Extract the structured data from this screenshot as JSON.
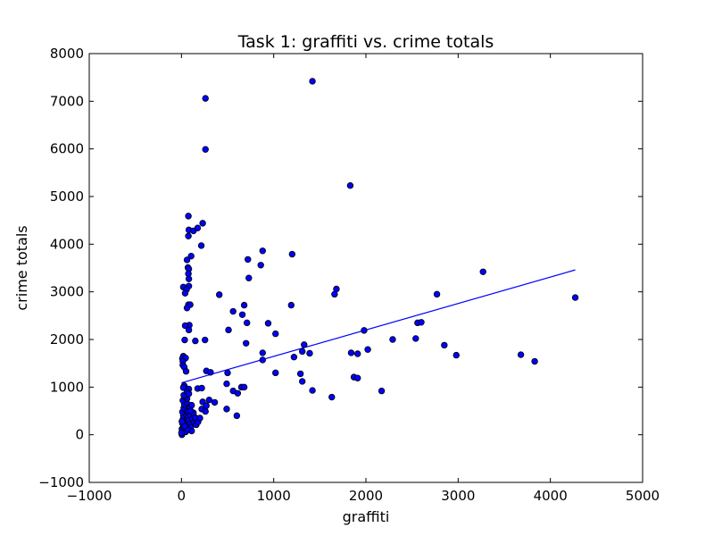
{
  "chart_data": {
    "type": "scatter",
    "title": "Task 1: graffiti vs. crime totals",
    "xlabel": "graffiti",
    "ylabel": "crime totals",
    "xlim": [
      -1000,
      5000
    ],
    "ylim": [
      -1000,
      8000
    ],
    "xticks": [
      -1000,
      0,
      1000,
      2000,
      3000,
      4000,
      5000
    ],
    "yticks": [
      -1000,
      0,
      1000,
      2000,
      3000,
      4000,
      5000,
      6000,
      7000,
      8000
    ],
    "xtick_labels": [
      "−1000",
      "0",
      "1000",
      "2000",
      "3000",
      "4000",
      "5000"
    ],
    "ytick_labels": [
      "−1000",
      "0",
      "1000",
      "2000",
      "3000",
      "4000",
      "5000",
      "6000",
      "7000",
      "8000"
    ],
    "grid": false,
    "marker_color": "#0000ff",
    "line_color": "#0000ff",
    "fit_line": {
      "x": [
        0,
        4270
      ],
      "y": [
        1090,
        3460
      ]
    },
    "points": [
      [
        260,
        7060
      ],
      [
        1420,
        7420
      ],
      [
        260,
        5990
      ],
      [
        1830,
        5230
      ],
      [
        75,
        4590
      ],
      [
        230,
        4440
      ],
      [
        80,
        4300
      ],
      [
        130,
        4280
      ],
      [
        175,
        4340
      ],
      [
        215,
        3970
      ],
      [
        75,
        4170
      ],
      [
        105,
        3750
      ],
      [
        60,
        3670
      ],
      [
        70,
        3510
      ],
      [
        80,
        3480
      ],
      [
        75,
        3380
      ],
      [
        80,
        3270
      ],
      [
        80,
        3120
      ],
      [
        20,
        3100
      ],
      [
        55,
        3050
      ],
      [
        40,
        2970
      ],
      [
        75,
        2730
      ],
      [
        95,
        2730
      ],
      [
        60,
        2660
      ],
      [
        85,
        2300
      ],
      [
        40,
        2290
      ],
      [
        80,
        2200
      ],
      [
        35,
        1990
      ],
      [
        20,
        1650
      ],
      [
        10,
        1600
      ],
      [
        45,
        1610
      ],
      [
        15,
        1540
      ],
      [
        15,
        1460
      ],
      [
        30,
        1420
      ],
      [
        50,
        1330
      ],
      [
        270,
        1340
      ],
      [
        315,
        1310
      ],
      [
        150,
        1970
      ],
      [
        255,
        1990
      ],
      [
        30,
        1030
      ],
      [
        20,
        990
      ],
      [
        175,
        970
      ],
      [
        220,
        980
      ],
      [
        80,
        960
      ],
      [
        410,
        2940
      ],
      [
        560,
        2590
      ],
      [
        660,
        2520
      ],
      [
        680,
        2720
      ],
      [
        720,
        3680
      ],
      [
        730,
        3290
      ],
      [
        710,
        2350
      ],
      [
        510,
        2200
      ],
      [
        700,
        1920
      ],
      [
        880,
        3860
      ],
      [
        860,
        3560
      ],
      [
        1200,
        3790
      ],
      [
        1190,
        2720
      ],
      [
        940,
        2340
      ],
      [
        1020,
        2120
      ],
      [
        880,
        1720
      ],
      [
        880,
        1570
      ],
      [
        1220,
        1630
      ],
      [
        1330,
        1890
      ],
      [
        1310,
        1750
      ],
      [
        1390,
        1710
      ],
      [
        1660,
        2950
      ],
      [
        1680,
        3060
      ],
      [
        1290,
        1280
      ],
      [
        1310,
        1120
      ],
      [
        1420,
        930
      ],
      [
        1630,
        790
      ],
      [
        1020,
        1300
      ],
      [
        500,
        1300
      ],
      [
        490,
        1070
      ],
      [
        560,
        920
      ],
      [
        610,
        870
      ],
      [
        650,
        1000
      ],
      [
        680,
        1000
      ],
      [
        490,
        540
      ],
      [
        600,
        400
      ],
      [
        360,
        680
      ],
      [
        300,
        730
      ],
      [
        230,
        690
      ],
      [
        270,
        610
      ],
      [
        220,
        540
      ],
      [
        260,
        490
      ],
      [
        1840,
        1720
      ],
      [
        1870,
        1210
      ],
      [
        1910,
        1190
      ],
      [
        1910,
        1700
      ],
      [
        1980,
        2190
      ],
      [
        2020,
        1790
      ],
      [
        2170,
        920
      ],
      [
        2290,
        2000
      ],
      [
        2540,
        2020
      ],
      [
        2560,
        2350
      ],
      [
        2600,
        2360
      ],
      [
        2770,
        2950
      ],
      [
        2850,
        1880
      ],
      [
        2980,
        1670
      ],
      [
        3270,
        3420
      ],
      [
        3680,
        1680
      ],
      [
        3830,
        1540
      ],
      [
        4270,
        2880
      ],
      [
        5,
        0
      ],
      [
        10,
        40
      ],
      [
        15,
        80
      ],
      [
        5,
        120
      ],
      [
        20,
        160
      ],
      [
        25,
        200
      ],
      [
        10,
        240
      ],
      [
        30,
        280
      ],
      [
        15,
        320
      ],
      [
        35,
        360
      ],
      [
        20,
        400
      ],
      [
        40,
        440
      ],
      [
        10,
        480
      ],
      [
        45,
        520
      ],
      [
        25,
        560
      ],
      [
        50,
        600
      ],
      [
        30,
        640
      ],
      [
        55,
        680
      ],
      [
        15,
        720
      ],
      [
        60,
        760
      ],
      [
        35,
        800
      ],
      [
        25,
        830
      ],
      [
        70,
        380
      ],
      [
        80,
        300
      ],
      [
        90,
        220
      ],
      [
        100,
        160
      ],
      [
        110,
        80
      ],
      [
        75,
        480
      ],
      [
        95,
        410
      ],
      [
        120,
        330
      ],
      [
        140,
        260
      ],
      [
        160,
        210
      ],
      [
        180,
        270
      ],
      [
        130,
        460
      ],
      [
        150,
        360
      ],
      [
        200,
        350
      ],
      [
        90,
        560
      ],
      [
        110,
        620
      ],
      [
        60,
        900
      ],
      [
        80,
        860
      ],
      [
        100,
        500
      ],
      [
        45,
        60
      ],
      [
        65,
        120
      ],
      [
        35,
        180
      ],
      [
        0,
        40
      ],
      [
        5,
        280
      ]
    ]
  }
}
